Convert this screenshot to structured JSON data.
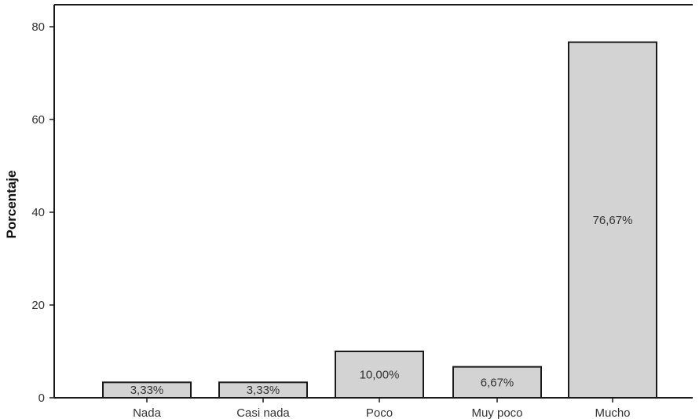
{
  "chart_data": {
    "type": "bar",
    "title": "",
    "xlabel": "",
    "ylabel": "Porcentaje",
    "categories": [
      "Nada",
      "Casi nada",
      "Poco",
      "Muy poco",
      "Mucho"
    ],
    "values": [
      3.33,
      3.33,
      10.0,
      6.67,
      76.67
    ],
    "data_labels": [
      "3,33%",
      "3,33%",
      "10,00%",
      "6,67%",
      "76,67%"
    ],
    "ylim": [
      0,
      85
    ],
    "yticks": [
      0,
      20,
      40,
      60,
      80
    ],
    "grid": false,
    "bar_color": "#d3d3d3",
    "edge_color": "#1a1a1a"
  }
}
